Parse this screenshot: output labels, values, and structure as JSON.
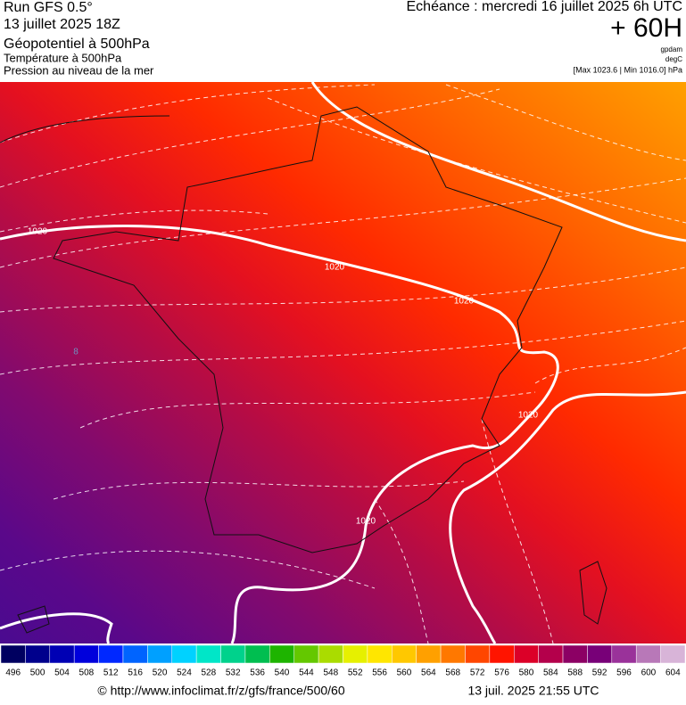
{
  "header": {
    "left": [
      "Run GFS 0.5°",
      "13 juillet 2025 18Z",
      "Géopotentiel à 500hPa",
      "Température à 500hPa",
      "Pression au niveau de la mer"
    ],
    "echeance": "Echéance : mercredi 16 juillet 2025 6h UTC",
    "lead": "+ 60H",
    "units": [
      "gpdam",
      "degC"
    ],
    "range": "[Max 1023.6 | Min 1016.0] hPa"
  },
  "map": {
    "isobar_labels": [
      "1020",
      "1020",
      "1020",
      "1020",
      "1020"
    ],
    "isotherm_labels": [
      "8"
    ]
  },
  "legend": {
    "levels": [
      496,
      500,
      504,
      508,
      512,
      516,
      520,
      524,
      528,
      532,
      536,
      540,
      544,
      548,
      552,
      556,
      560,
      564,
      568,
      572,
      576,
      580,
      584,
      588,
      592,
      596,
      600,
      604
    ],
    "colors": [
      "#000060",
      "#00008c",
      "#0000b4",
      "#0000dc",
      "#0028ff",
      "#0064ff",
      "#00a0ff",
      "#00d2ff",
      "#00e6c8",
      "#00d28c",
      "#00be50",
      "#1eb400",
      "#64c800",
      "#aadc00",
      "#e6f000",
      "#ffe600",
      "#ffc800",
      "#ffa000",
      "#ff7800",
      "#ff4600",
      "#ff1400",
      "#dc0028",
      "#b4004b",
      "#8c0064",
      "#780078",
      "#9a329a",
      "#b878b8",
      "#d8b4d8"
    ]
  },
  "footer": {
    "url": "© http://www.infoclimat.fr/z/gfs/france/500/60",
    "date": "13 juil. 2025 21:55 UTC"
  }
}
